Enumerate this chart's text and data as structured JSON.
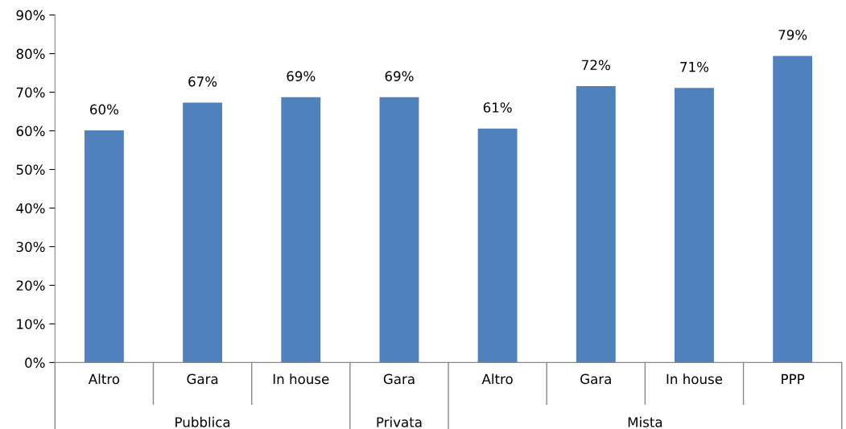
{
  "chart_data": {
    "type": "bar",
    "categories": [
      "Altro",
      "Gara",
      "In house",
      "Gara",
      "Altro",
      "Gara",
      "In house",
      "PPP"
    ],
    "values": [
      60.1,
      67.3,
      68.7,
      68.7,
      60.6,
      71.6,
      71.1,
      79.4
    ],
    "value_labels": [
      "60%",
      "67%",
      "69%",
      "69%",
      "61%",
      "72%",
      "71%",
      "79%"
    ],
    "color": "#4f81bd",
    "ylim": [
      0,
      90
    ],
    "yticks": [
      {
        "value": 0,
        "label": "0%"
      },
      {
        "value": 10,
        "label": "10%"
      },
      {
        "value": 20,
        "label": "20%"
      },
      {
        "value": 30,
        "label": "30%"
      },
      {
        "value": 40,
        "label": "40%"
      },
      {
        "value": 50,
        "label": "50%"
      },
      {
        "value": 60,
        "label": "60%"
      },
      {
        "value": 70,
        "label": "70%"
      },
      {
        "value": 80,
        "label": "80%"
      },
      {
        "value": 90,
        "label": "90%"
      }
    ],
    "grid": false,
    "annotations": [
      "Pubblica",
      "Privata",
      "Mista"
    ]
  }
}
